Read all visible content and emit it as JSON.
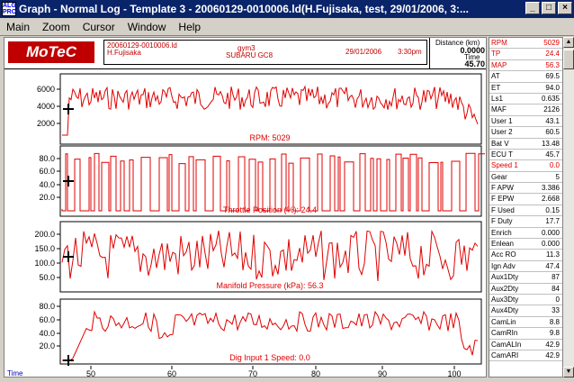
{
  "window": {
    "title": "Graph - Normal Log - Template 3 - 20060129-0010006.ld(H.Fujisaka, test, 29/01/2006, 3:...",
    "icon_text": "ALG PRO"
  },
  "menu": [
    "Main",
    "Zoom",
    "Cursor",
    "Window",
    "Help"
  ],
  "header": {
    "logo": "MoTeC",
    "file": "20060129-0010006.ld",
    "driver": "H.Fujisaka",
    "session": "gym3",
    "vehicle": "SUBARU GC8",
    "date": "29/01/2006",
    "time": "3:30pm",
    "distance_label": "Distance (km)",
    "distance_value": "0.0000",
    "time_label": "Time",
    "time_value": "45.70"
  },
  "x_axis": {
    "ticks": [
      "50",
      "60",
      "70",
      "80",
      "90",
      "100"
    ],
    "label": "Time"
  },
  "graphs": [
    {
      "label": "RPM: 5029",
      "ticks": [
        "6000",
        "4000",
        "2000"
      ]
    },
    {
      "label": "Throttle Position (%): 24.4",
      "ticks": [
        "80.0",
        "60.0",
        "40.0",
        "20.0"
      ]
    },
    {
      "label": "Manifold Pressure (kPa): 56.3",
      "ticks": [
        "200.0",
        "150.0",
        "100.0",
        "50.0"
      ]
    },
    {
      "label": "Dig Input 1 Speed: 0.0",
      "ticks": [
        "80.0",
        "60.0",
        "40.0",
        "20.0"
      ]
    }
  ],
  "channels": [
    {
      "name": "RPM",
      "value": "5029",
      "color": "red"
    },
    {
      "name": "TP",
      "value": "24.4",
      "color": "red"
    },
    {
      "name": "MAP",
      "value": "56.3",
      "color": "red"
    },
    {
      "name": "AT",
      "value": "69.5",
      "color": "black"
    },
    {
      "name": "ET",
      "value": "94.0",
      "color": "black"
    },
    {
      "name": "Ls1",
      "value": "0.635",
      "color": "black"
    },
    {
      "name": "MAF",
      "value": "2126",
      "color": "black"
    },
    {
      "name": "User 1",
      "value": "43.1",
      "color": "black"
    },
    {
      "name": "User 2",
      "value": "60.5",
      "color": "black"
    },
    {
      "name": "Bat V",
      "value": "13.48",
      "color": "black"
    },
    {
      "name": "ECU T",
      "value": "45.7",
      "color": "black"
    },
    {
      "name": "Speed 1",
      "value": "0.0",
      "color": "red"
    },
    {
      "name": "Gear",
      "value": "5",
      "color": "black"
    },
    {
      "name": "F APW",
      "value": "3.386",
      "color": "black"
    },
    {
      "name": "F EPW",
      "value": "2.668",
      "color": "black"
    },
    {
      "name": "F Used",
      "value": "0.15",
      "color": "black"
    },
    {
      "name": "F Duty",
      "value": "17.7",
      "color": "black"
    },
    {
      "name": "Enrich",
      "value": "0.000",
      "color": "black"
    },
    {
      "name": "Enlean",
      "value": "0.000",
      "color": "black"
    },
    {
      "name": "Acc RO",
      "value": "11.3",
      "color": "black"
    },
    {
      "name": "Ign Adv",
      "value": "47.4",
      "color": "black"
    },
    {
      "name": "Aux1Dty",
      "value": "87",
      "color": "black"
    },
    {
      "name": "Aux2Dty",
      "value": "84",
      "color": "black"
    },
    {
      "name": "Aux3Dty",
      "value": "0",
      "color": "black"
    },
    {
      "name": "Aux4Dty",
      "value": "33",
      "color": "black"
    },
    {
      "name": "CamLin",
      "value": "8.8",
      "color": "black"
    },
    {
      "name": "CamRIn",
      "value": "9.8",
      "color": "black"
    },
    {
      "name": "CamALIn",
      "value": "42.9",
      "color": "black"
    },
    {
      "name": "CamARI",
      "value": "42.9",
      "color": "black"
    }
  ],
  "colors": {
    "trace": "#e00000",
    "titlebar": "#0a246a",
    "logo": "#c00000"
  }
}
